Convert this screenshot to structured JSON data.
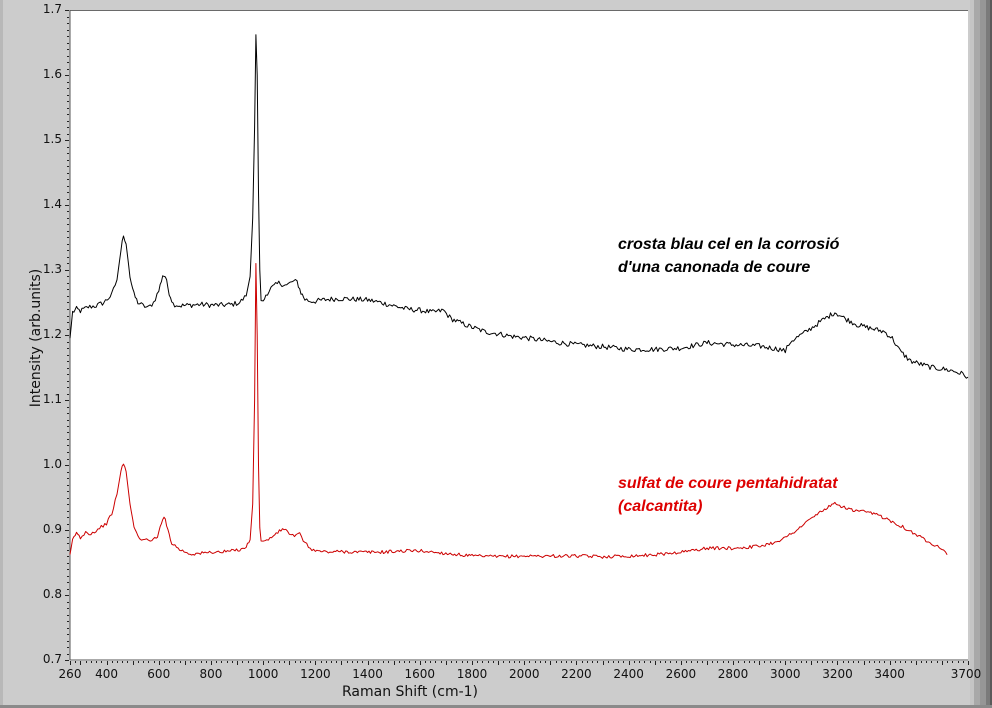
{
  "chart_data": {
    "type": "line",
    "title": "",
    "xlabel": "Raman Shift (cm-1)",
    "ylabel": "Intensity (arb.units)",
    "xlim": [
      260,
      3700
    ],
    "ylim": [
      0.7,
      1.7
    ],
    "grid": false,
    "legend": "inline annotations",
    "x_ticks": [
      260,
      400,
      600,
      800,
      1000,
      1200,
      1400,
      1600,
      1800,
      2000,
      2200,
      2400,
      2600,
      2800,
      3000,
      3200,
      3400,
      3700
    ],
    "y_ticks": [
      0.7,
      0.8,
      0.9,
      1.0,
      1.1,
      1.2,
      1.3,
      1.4,
      1.5,
      1.6,
      1.7
    ],
    "annotations": [
      {
        "text_lines": [
          "crosta blau cel en la corrosió",
          "d'una canonada de coure"
        ],
        "color": "#000000",
        "series": 0
      },
      {
        "text_lines": [
          "sulfat de coure pentahidratat",
          "(calcantita)"
        ],
        "color": "#dd0000",
        "series": 1
      }
    ],
    "series": [
      {
        "name": "crosta blau cel en la corrosió d'una canonada de coure",
        "color": "#000000",
        "x": [
          260,
          270,
          285,
          300,
          330,
          360,
          390,
          420,
          440,
          455,
          465,
          475,
          490,
          505,
          520,
          540,
          560,
          580,
          600,
          615,
          625,
          640,
          655,
          680,
          720,
          760,
          800,
          840,
          880,
          910,
          935,
          950,
          960,
          967,
          972,
          977,
          982,
          987,
          992,
          1000,
          1010,
          1030,
          1060,
          1090,
          1110,
          1130,
          1145,
          1160,
          1180,
          1200,
          1250,
          1300,
          1350,
          1400,
          1450,
          1500,
          1550,
          1600,
          1650,
          1690,
          1720,
          1760,
          1800,
          1850,
          1900,
          1950,
          2000,
          2100,
          2200,
          2300,
          2400,
          2500,
          2600,
          2700,
          2800,
          2900,
          2980,
          3000,
          3020,
          3080,
          3140,
          3190,
          3230,
          3280,
          3330,
          3380,
          3410,
          3440,
          3480,
          3520,
          3560,
          3600,
          3640,
          3680,
          3700
        ],
        "y": [
          1.195,
          1.235,
          1.24,
          1.237,
          1.243,
          1.245,
          1.25,
          1.262,
          1.285,
          1.33,
          1.355,
          1.34,
          1.29,
          1.262,
          1.25,
          1.245,
          1.242,
          1.25,
          1.268,
          1.292,
          1.29,
          1.265,
          1.248,
          1.245,
          1.246,
          1.247,
          1.246,
          1.246,
          1.247,
          1.25,
          1.26,
          1.29,
          1.38,
          1.52,
          1.662,
          1.6,
          1.42,
          1.3,
          1.255,
          1.25,
          1.262,
          1.272,
          1.28,
          1.276,
          1.282,
          1.282,
          1.265,
          1.255,
          1.252,
          1.252,
          1.255,
          1.256,
          1.255,
          1.254,
          1.25,
          1.245,
          1.24,
          1.238,
          1.235,
          1.238,
          1.225,
          1.218,
          1.212,
          1.205,
          1.202,
          1.198,
          1.196,
          1.19,
          1.185,
          1.182,
          1.178,
          1.178,
          1.18,
          1.188,
          1.185,
          1.183,
          1.178,
          1.175,
          1.19,
          1.205,
          1.222,
          1.235,
          1.225,
          1.215,
          1.21,
          1.205,
          1.195,
          1.175,
          1.16,
          1.155,
          1.15,
          1.148,
          1.145,
          1.14,
          1.135
        ]
      },
      {
        "name": "sulfat de coure pentahidratat (calcantita)",
        "color": "#cc0000",
        "x": [
          260,
          270,
          285,
          300,
          320,
          340,
          360,
          380,
          400,
          420,
          440,
          455,
          465,
          475,
          490,
          505,
          520,
          540,
          560,
          580,
          595,
          610,
          620,
          635,
          650,
          680,
          720,
          760,
          800,
          840,
          880,
          910,
          935,
          950,
          960,
          967,
          972,
          977,
          982,
          987,
          992,
          1000,
          1020,
          1050,
          1080,
          1100,
          1120,
          1140,
          1160,
          1180,
          1200,
          1250,
          1300,
          1350,
          1400,
          1450,
          1500,
          1550,
          1600,
          1650,
          1700,
          1750,
          1800,
          1900,
          2000,
          2100,
          2200,
          2300,
          2400,
          2500,
          2600,
          2700,
          2800,
          2900,
          2950,
          3000,
          3050,
          3100,
          3150,
          3190,
          3220,
          3260,
          3300,
          3350,
          3400,
          3450,
          3500,
          3550,
          3600,
          3620
        ],
        "y": [
          0.86,
          0.885,
          0.896,
          0.888,
          0.897,
          0.894,
          0.899,
          0.905,
          0.91,
          0.925,
          0.955,
          0.99,
          1.003,
          0.99,
          0.94,
          0.905,
          0.89,
          0.885,
          0.884,
          0.886,
          0.888,
          0.912,
          0.922,
          0.9,
          0.88,
          0.87,
          0.863,
          0.864,
          0.866,
          0.866,
          0.868,
          0.87,
          0.874,
          0.885,
          0.94,
          1.1,
          1.31,
          1.2,
          1.0,
          0.905,
          0.885,
          0.882,
          0.885,
          0.895,
          0.902,
          0.895,
          0.89,
          0.894,
          0.88,
          0.872,
          0.868,
          0.866,
          0.867,
          0.866,
          0.866,
          0.866,
          0.867,
          0.868,
          0.868,
          0.866,
          0.864,
          0.862,
          0.86,
          0.859,
          0.86,
          0.86,
          0.86,
          0.859,
          0.86,
          0.862,
          0.866,
          0.872,
          0.872,
          0.875,
          0.88,
          0.888,
          0.902,
          0.918,
          0.932,
          0.94,
          0.936,
          0.93,
          0.928,
          0.924,
          0.915,
          0.905,
          0.893,
          0.882,
          0.872,
          0.862
        ]
      }
    ]
  }
}
